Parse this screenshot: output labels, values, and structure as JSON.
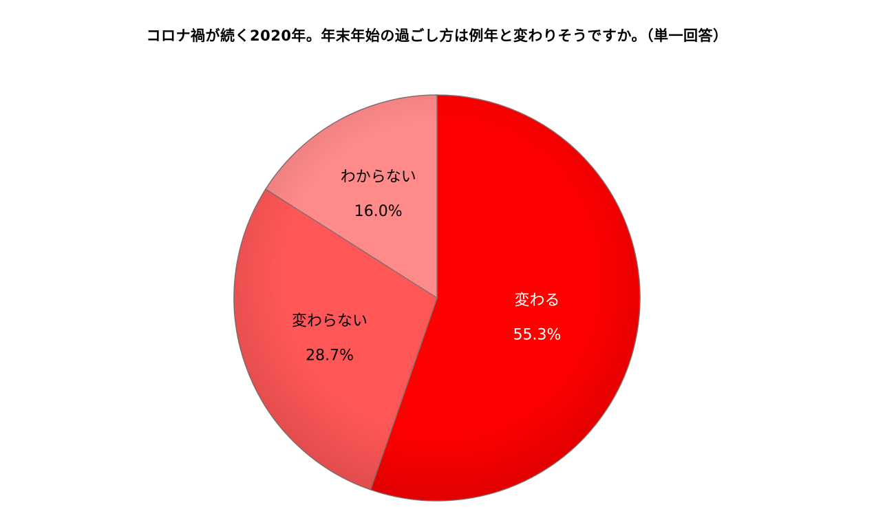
{
  "chart_data": {
    "type": "pie",
    "title": "コロナ禍が続く2020年。年末年始の過ごし方は例年と変わりそうですか。（単一回答）",
    "slices": [
      {
        "label": "変わる",
        "value": 55.3,
        "display": "55.3%",
        "color": "#ff0000",
        "label_color": "#ffffff"
      },
      {
        "label": "変わらない",
        "value": 28.7,
        "display": "28.7%",
        "color": "#ff5757",
        "label_color": "#000000"
      },
      {
        "label": "わからない",
        "value": 16.0,
        "display": "16.0%",
        "color": "#ff8a8a",
        "label_color": "#000000"
      }
    ],
    "start": "12 o'clock",
    "direction": "clockwise",
    "legend": "none"
  }
}
